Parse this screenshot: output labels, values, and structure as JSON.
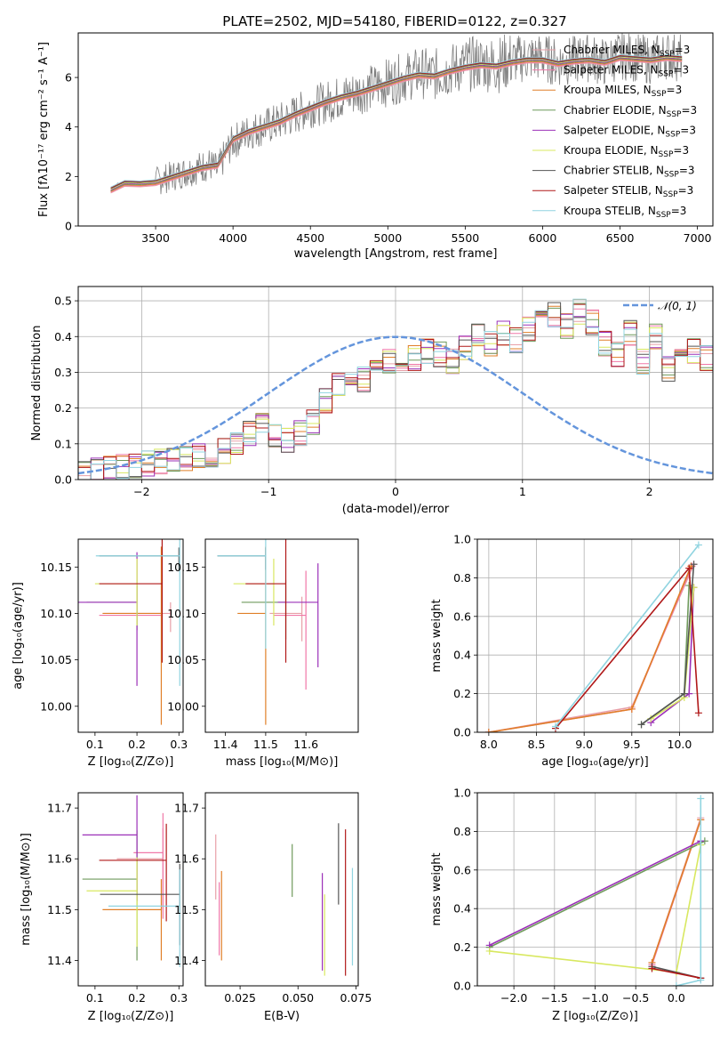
{
  "figure": {
    "title": "PLATE=2502, MJD=54180, FIBERID=0122, z=0.327"
  },
  "models": [
    {
      "label": "Chabrier MILES, N",
      "sub": "SSP",
      "suffix": "=3",
      "color": "#e8a0a8"
    },
    {
      "label": "Salpeter MILES, N",
      "sub": "SSP",
      "suffix": "=3",
      "color": "#f078a8"
    },
    {
      "label": "Kroupa MILES, N",
      "sub": "SSP",
      "suffix": "=3",
      "color": "#e07f28"
    },
    {
      "label": "Chabrier ELODIE, N",
      "sub": "SSP",
      "suffix": "=3",
      "color": "#6f9a5c"
    },
    {
      "label": "Salpeter ELODIE, N",
      "sub": "SSP",
      "suffix": "=3",
      "color": "#9b30b8"
    },
    {
      "label": "Kroupa ELODIE, N",
      "sub": "SSP",
      "suffix": "=3",
      "color": "#d8e860"
    },
    {
      "label": "Chabrier STELIB, N",
      "sub": "SSP",
      "suffix": "=3",
      "color": "#555555"
    },
    {
      "label": "Salpeter STELIB, N",
      "sub": "SSP",
      "suffix": "=3",
      "color": "#b01818"
    },
    {
      "label": "Kroupa STELIB, N",
      "sub": "SSP",
      "suffix": "=3",
      "color": "#90d4e0"
    }
  ],
  "chart_data": [
    {
      "id": "spectrum",
      "type": "line",
      "xlabel": "wavelength [Angstrom, rest frame]",
      "ylabel": "Flux [fλ10⁻¹⁷ erg cm⁻² s⁻¹ A⁻¹]",
      "xlim": [
        3000,
        7100
      ],
      "ylim": [
        0,
        7.8
      ],
      "xticks": [
        3500,
        4000,
        4500,
        5000,
        5500,
        6000,
        6500,
        7000
      ],
      "yticks": [
        0,
        2,
        4,
        6
      ],
      "series": [
        {
          "role": "observed",
          "color": "#808080",
          "x": [
            3210,
            3250,
            3300,
            3350,
            3400,
            3450,
            3500,
            3550,
            3600,
            3650,
            3700,
            3750,
            3800,
            3850,
            3900,
            3950,
            4000,
            4100,
            4200,
            4300,
            4400,
            4500,
            4600,
            4700,
            4800,
            4900,
            5000,
            5100,
            5200,
            5300,
            5400,
            5500,
            5600,
            5700,
            5800,
            5900,
            6000,
            6100,
            6200,
            6300,
            6400,
            6500,
            6600,
            6700,
            6800,
            6900
          ],
          "y": [
            1.4,
            1.7,
            1.75,
            1.7,
            1.72,
            1.68,
            1.8,
            1.9,
            2.0,
            2.1,
            2.2,
            2.3,
            2.4,
            2.5,
            2.2,
            2.9,
            3.4,
            3.8,
            4.0,
            4.2,
            4.5,
            4.8,
            5.0,
            5.2,
            5.4,
            5.6,
            5.8,
            6.0,
            6.2,
            6.1,
            6.3,
            6.5,
            6.6,
            6.5,
            6.7,
            6.8,
            6.8,
            6.6,
            6.7,
            6.8,
            6.6,
            6.9,
            6.8,
            6.7,
            6.9,
            6.8
          ]
        },
        {
          "role": "model",
          "x": [
            3210,
            3300,
            3400,
            3500,
            3600,
            3700,
            3800,
            3900,
            4000,
            4100,
            4200,
            4300,
            4400,
            4500,
            4600,
            4700,
            4800,
            4900,
            5000,
            5100,
            5200,
            5300,
            5400,
            5500,
            5600,
            5700,
            5800,
            5900,
            6000,
            6100,
            6200,
            6300,
            6400,
            6500,
            6600,
            6700,
            6800,
            6900
          ],
          "y": [
            1.45,
            1.72,
            1.7,
            1.75,
            1.95,
            2.15,
            2.35,
            2.45,
            3.5,
            3.8,
            4.0,
            4.2,
            4.5,
            4.75,
            5.0,
            5.2,
            5.35,
            5.55,
            5.75,
            5.95,
            6.1,
            6.05,
            6.25,
            6.4,
            6.5,
            6.45,
            6.6,
            6.7,
            6.7,
            6.55,
            6.65,
            6.7,
            6.6,
            6.8,
            6.75,
            6.7,
            6.8,
            6.75
          ]
        }
      ]
    },
    {
      "id": "residuals",
      "type": "line",
      "xlabel": "(data-model)/error",
      "ylabel": "Normed distribution",
      "xlim": [
        -2.5,
        2.5
      ],
      "ylim": [
        0,
        0.54
      ],
      "xticks": [
        -2,
        -1,
        0,
        1,
        2
      ],
      "yticks": [
        0.0,
        0.1,
        0.2,
        0.3,
        0.4,
        0.5
      ],
      "grid": true,
      "legend": {
        "label": "𝒩(0, 1)",
        "placement": "top-right"
      },
      "gaussian": {
        "mean": 0,
        "sigma": 1,
        "color": "#6495dc"
      },
      "bin_edges_range": [
        -2.5,
        2.5
      ],
      "bin_width": 0.1,
      "hist_envelope": [
        0.02,
        0.025,
        0.03,
        0.035,
        0.04,
        0.045,
        0.05,
        0.055,
        0.06,
        0.065,
        0.07,
        0.08,
        0.1,
        0.13,
        0.15,
        0.12,
        0.11,
        0.13,
        0.16,
        0.22,
        0.27,
        0.3,
        0.28,
        0.32,
        0.33,
        0.29,
        0.34,
        0.36,
        0.35,
        0.33,
        0.37,
        0.4,
        0.38,
        0.41,
        0.39,
        0.42,
        0.45,
        0.46,
        0.43,
        0.47,
        0.44,
        0.38,
        0.35,
        0.41,
        0.33,
        0.4,
        0.31,
        0.37,
        0.36,
        0.34
      ]
    },
    {
      "id": "age-vs-Z",
      "type": "scatter",
      "xlabel": "Z [log₁₀(Z/Z⊙)]",
      "ylabel": "age  [log₁₀(age/yr)]",
      "xlim": [
        0.06,
        0.31
      ],
      "ylim": [
        9.972,
        10.18
      ],
      "xticks": [
        0.1,
        0.2,
        0.3
      ],
      "yticks": [
        10.0,
        10.05,
        10.1,
        10.15
      ],
      "points": [
        {
          "x": 0.28,
          "xerr": 0.16,
          "y": 10.1,
          "yerr": 0.02
        },
        {
          "x": 0.26,
          "xerr": 0.15,
          "y": 10.098,
          "yerr": 0.02
        },
        {
          "x": 0.258,
          "xerr": 0.14,
          "y": 10.1,
          "yerr": 0.12
        },
        {
          "x": 0.2,
          "xerr": 0.12,
          "y": 10.112,
          "yerr": 0.03
        },
        {
          "x": 0.2,
          "xerr": 0.14,
          "y": 10.112,
          "yerr": 0.09
        },
        {
          "x": 0.2,
          "xerr": 0.1,
          "y": 10.132,
          "yerr": 0.045
        },
        {
          "x": 0.3,
          "xerr": 0.19,
          "y": 10.162,
          "yerr": 0.015
        },
        {
          "x": 0.26,
          "xerr": 0.15,
          "y": 10.132,
          "yerr": 0.085
        },
        {
          "x": 0.302,
          "xerr": 0.2,
          "y": 10.162,
          "yerr": 0.14
        }
      ]
    },
    {
      "id": "age-vs-mass",
      "type": "scatter",
      "xlabel": "mass [log₁₀(M/M⊙)]",
      "ylabel": "",
      "xlim": [
        11.35,
        11.73
      ],
      "ylim": [
        9.972,
        10.18
      ],
      "xticks": [
        11.4,
        11.5,
        11.6
      ],
      "yticks": [
        10.0,
        10.05,
        10.1,
        10.15
      ],
      "points": [
        {
          "x": 11.59,
          "xerr": 0.08,
          "y": 10.1,
          "yerr": 0.03
        },
        {
          "x": 11.6,
          "xerr": 0.08,
          "y": 10.098,
          "yerr": 0.08
        },
        {
          "x": 11.5,
          "xerr": 0.07,
          "y": 10.1,
          "yerr": 0.12
        },
        {
          "x": 11.55,
          "xerr": 0.11,
          "y": 10.112,
          "yerr": 0.04
        },
        {
          "x": 11.63,
          "xerr": 0.1,
          "y": 10.112,
          "yerr": 0.07
        },
        {
          "x": 11.52,
          "xerr": 0.1,
          "y": 10.132,
          "yerr": 0.045
        },
        {
          "x": 11.5,
          "xerr": 0.12,
          "y": 10.162,
          "yerr": 0.015
        },
        {
          "x": 11.55,
          "xerr": 0.1,
          "y": 10.132,
          "yerr": 0.085
        },
        {
          "x": 11.5,
          "xerr": 0.12,
          "y": 10.162,
          "yerr": 0.1
        }
      ]
    },
    {
      "id": "massweight-vs-age",
      "type": "line",
      "xlabel": "age  [log₁₀(age/yr)]",
      "ylabel": "mass weight",
      "xlim": [
        7.88,
        10.35
      ],
      "ylim": [
        0,
        1.0
      ],
      "xticks": [
        8.0,
        8.5,
        9.0,
        9.5,
        10.0
      ],
      "yticks": [
        0.0,
        0.2,
        0.4,
        0.6,
        0.8,
        1.0
      ],
      "grid": true,
      "lines": [
        {
          "x": [
            8.0,
            9.5,
            10.15
          ],
          "y": [
            0.0,
            0.13,
            0.87
          ]
        },
        {
          "x": [
            8.0,
            9.5,
            10.13
          ],
          "y": [
            0.0,
            0.12,
            0.86
          ]
        },
        {
          "x": [
            8.0,
            9.5,
            10.12
          ],
          "y": [
            0.0,
            0.12,
            0.86
          ]
        },
        {
          "x": [
            9.6,
            10.05,
            10.1
          ],
          "y": [
            0.04,
            0.2,
            0.76
          ]
        },
        {
          "x": [
            9.7,
            10.1,
            10.15
          ],
          "y": [
            0.05,
            0.2,
            0.75
          ]
        },
        {
          "x": [
            9.7,
            10.05,
            10.15
          ],
          "y": [
            0.07,
            0.18,
            0.75
          ]
        },
        {
          "x": [
            9.6,
            10.05,
            10.15
          ],
          "y": [
            0.04,
            0.2,
            0.87
          ]
        },
        {
          "x": [
            8.7,
            10.1,
            10.2
          ],
          "y": [
            0.02,
            0.85,
            0.1
          ]
        },
        {
          "x": [
            8.7,
            10.2
          ],
          "y": [
            0.03,
            0.97
          ]
        }
      ]
    },
    {
      "id": "mass-vs-Z",
      "type": "scatter",
      "xlabel": "Z [log₁₀(Z/Z⊙)]",
      "ylabel": "mass [log₁₀(M/M⊙)]",
      "xlim": [
        0.06,
        0.31
      ],
      "ylim": [
        11.35,
        11.73
      ],
      "xticks": [
        0.1,
        0.2,
        0.3
      ],
      "yticks": [
        11.4,
        11.5,
        11.6,
        11.7
      ],
      "points": [
        {
          "x": 0.262,
          "xerr": 0.11,
          "y": 11.6,
          "yerr": 0.1
        },
        {
          "x": 0.262,
          "xerr": 0.07,
          "y": 11.612,
          "yerr": 0.13
        },
        {
          "x": 0.258,
          "xerr": 0.14,
          "y": 11.5,
          "yerr": 0.1
        },
        {
          "x": 0.2,
          "xerr": 0.13,
          "y": 11.56,
          "yerr": 0.16
        },
        {
          "x": 0.2,
          "xerr": 0.13,
          "y": 11.647,
          "yerr": 0.13
        },
        {
          "x": 0.2,
          "xerr": 0.12,
          "y": 11.537,
          "yerr": 0.11
        },
        {
          "x": 0.302,
          "xerr": 0.19,
          "y": 11.53,
          "yerr": 0.1
        },
        {
          "x": 0.27,
          "xerr": 0.16,
          "y": 11.597,
          "yerr": 0.12
        },
        {
          "x": 0.302,
          "xerr": 0.17,
          "y": 11.507,
          "yerr": 0.12
        }
      ]
    },
    {
      "id": "mass-vs-EBV",
      "type": "scatter",
      "xlabel": "E(B-V)",
      "ylabel": "",
      "xlim": [
        0.01,
        0.076
      ],
      "ylim": [
        11.35,
        11.73
      ],
      "xticks": [
        0.025,
        0.05,
        0.075
      ],
      "yticks": [
        11.4,
        11.5,
        11.6,
        11.7
      ],
      "points": [
        {
          "x": 0.0145,
          "y": 11.6,
          "yerr": 0.08
        },
        {
          "x": 0.016,
          "y": 11.5,
          "yerr": 0.09
        },
        {
          "x": 0.017,
          "y": 11.51,
          "yerr": 0.11
        },
        {
          "x": 0.0475,
          "y": 11.59,
          "yerr": 0.065
        },
        {
          "x": 0.0605,
          "y": 11.5,
          "yerr": 0.12
        },
        {
          "x": 0.0615,
          "y": 11.47,
          "yerr": 0.1
        },
        {
          "x": 0.0675,
          "y": 11.61,
          "yerr": 0.1
        },
        {
          "x": 0.0705,
          "y": 11.55,
          "yerr": 0.18
        },
        {
          "x": 0.0735,
          "y": 11.51,
          "yerr": 0.12
        }
      ]
    },
    {
      "id": "massweight-vs-Z",
      "type": "line",
      "xlabel": "Z [log₁₀(Z/Z⊙)]",
      "ylabel": "mass weight",
      "xlim": [
        -2.45,
        0.45
      ],
      "ylim": [
        0,
        1.0
      ],
      "xticks": [
        -2.0,
        -1.5,
        -1.0,
        -0.5,
        0.0
      ],
      "yticks": [
        0.0,
        0.2,
        0.4,
        0.6,
        0.8,
        1.0
      ],
      "grid": true,
      "lines": [
        {
          "x": [
            -0.3,
            0.3
          ],
          "y": [
            0.12,
            0.87
          ]
        },
        {
          "x": [
            -0.3,
            0.3
          ],
          "y": [
            0.11,
            0.86
          ]
        },
        {
          "x": [
            -0.3,
            0.3
          ],
          "y": [
            0.12,
            0.86
          ]
        },
        {
          "x": [
            -2.3,
            0.35
          ],
          "y": [
            0.2,
            0.75
          ]
        },
        {
          "x": [
            -2.3,
            0.3
          ],
          "y": [
            0.21,
            0.75
          ]
        },
        {
          "x": [
            -2.3,
            0.0,
            0.3
          ],
          "y": [
            0.18,
            0.07,
            0.73
          ]
        },
        {
          "x": [
            -0.3,
            0.3
          ],
          "y": [
            0.1,
            0.04
          ]
        },
        {
          "x": [
            -0.3,
            0.3
          ],
          "y": [
            0.09,
            0.04
          ]
        },
        {
          "x": [
            0.0,
            0.3,
            0.3
          ],
          "y": [
            0.0,
            0.03,
            0.97
          ]
        }
      ]
    }
  ]
}
